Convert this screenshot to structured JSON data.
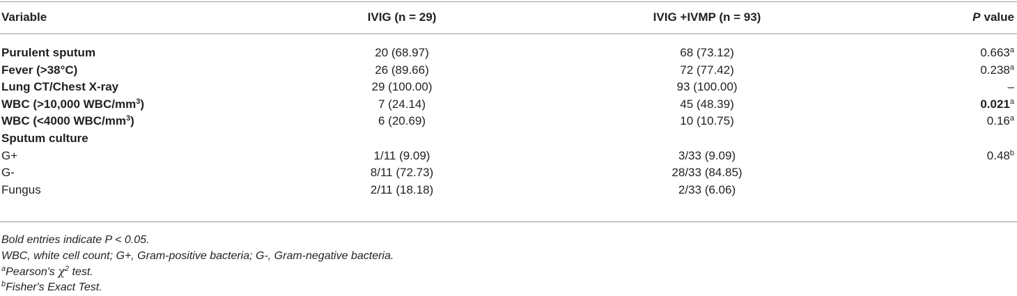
{
  "table": {
    "headers": [
      "Variable",
      "IVIG (n = 29)",
      "IVIG +IVMP (n = 93)"
    ],
    "p_header": {
      "symbol": "P",
      "text": "value"
    },
    "rows": [
      {
        "variable": "Purulent sputum",
        "bold": true,
        "ivig": "20 (68.97)",
        "combo": "68 (73.12)",
        "p": "0.663",
        "p_note": "a"
      },
      {
        "variable": "Fever (>38°C)",
        "bold": true,
        "ivig": "26 (89.66)",
        "combo": "72 (77.42)",
        "p": "0.238",
        "p_note": "a"
      },
      {
        "variable": "Lung CT/Chest X-ray",
        "bold": true,
        "ivig": "29 (100.00)",
        "combo": "93 (100.00)",
        "p": "–"
      },
      {
        "variable": "WBC (>10,000 WBC/mm",
        "variable_sup": "3",
        "variable_end": ")",
        "bold": true,
        "ivig": "7 (24.14)",
        "combo": "45 (48.39)",
        "p": "0.021",
        "p_note": "a",
        "p_bold": true
      },
      {
        "variable": "WBC (<4000 WBC/mm",
        "variable_sup": "3",
        "variable_end": ")",
        "bold": true,
        "ivig": "6 (20.69)",
        "combo": "10 (10.75)",
        "p": "0.16",
        "p_note": "a"
      },
      {
        "variable": "Sputum culture",
        "bold": true
      },
      {
        "variable": "G+",
        "ivig": "1/11 (9.09)",
        "combo": "3/33 (9.09)",
        "p": "0.48",
        "p_note": "b"
      },
      {
        "variable": "G-",
        "ivig": "8/11 (72.73)",
        "combo": "28/33 (84.85)"
      },
      {
        "variable": "Fungus",
        "ivig": "2/11 (18.18)",
        "combo": "2/33 (6.06)"
      }
    ],
    "footnotes": [
      {
        "text": "Bold entries indicate P < 0.05."
      },
      {
        "text": "WBC, white cell count; G+, Gram-positive bacteria; G-, Gram-negative bacteria."
      },
      {
        "mark": "a",
        "text": "Pearson's ",
        "symbol": "χ",
        "power": "2",
        "end": " test."
      },
      {
        "mark": "b",
        "text": "Fisher's Exact Test."
      }
    ]
  }
}
